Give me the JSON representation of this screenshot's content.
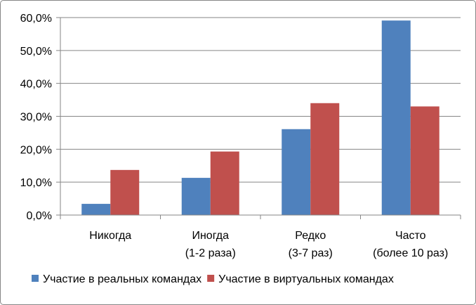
{
  "chart_data": {
    "type": "bar",
    "categories": [
      [
        "Никогда"
      ],
      [
        "Иногда",
        "(1-2 раза)"
      ],
      [
        "Редко",
        "(3-7 раз)"
      ],
      [
        "Часто",
        "(более 10 раз)"
      ]
    ],
    "series": [
      {
        "name": "Участие в реальных командах",
        "values": [
          3.4,
          11.3,
          26.1,
          59.1
        ],
        "color": "#4F81BD"
      },
      {
        "name": "Участие в виртуальных командах",
        "values": [
          13.7,
          19.3,
          34.0,
          33.0
        ],
        "color": "#C0504D"
      }
    ],
    "ylim": [
      0,
      60
    ],
    "ytick_step": 10,
    "ytick_labels": [
      "0,0%",
      "10,0%",
      "20,0%",
      "30,0%",
      "40,0%",
      "50,0%",
      "60,0%"
    ],
    "grid": true,
    "legend_position": "bottom",
    "title": "",
    "xlabel": "",
    "ylabel": ""
  }
}
